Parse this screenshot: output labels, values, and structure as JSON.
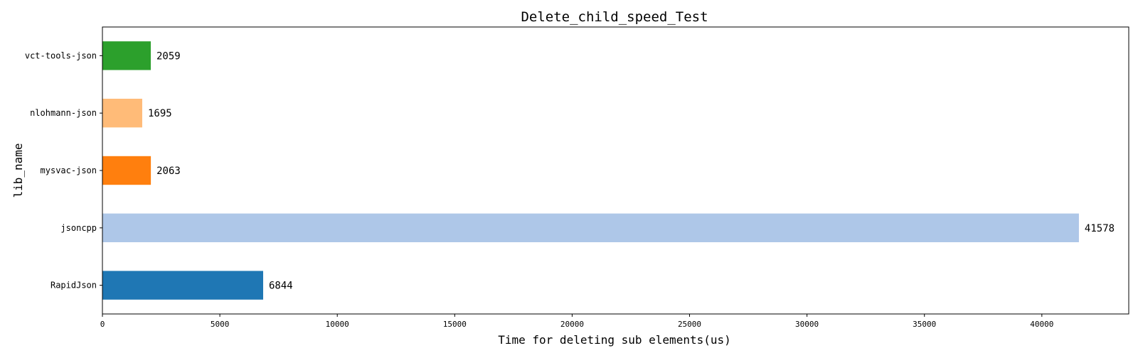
{
  "chart_data": {
    "type": "bar",
    "orientation": "horizontal",
    "title": "Delete_child_speed_Test",
    "xlabel": "Time for deleting sub elements(us)",
    "ylabel": "lib_name",
    "categories": [
      "RapidJson",
      "jsoncpp",
      "mysvac-json",
      "nlohmann-json",
      "vct-tools-json"
    ],
    "values": [
      6844,
      41578,
      2063,
      1695,
      2059
    ],
    "value_labels": [
      "6844",
      "41578",
      "2063",
      "1695",
      "2059"
    ],
    "colors": [
      "#1f77b4",
      "#aec7e8",
      "#ff7f0e",
      "#ffbb78",
      "#2ca02c"
    ],
    "xlim": [
      0,
      43700
    ],
    "xticks": [
      0,
      5000,
      10000,
      15000,
      20000,
      25000,
      30000,
      35000,
      40000
    ],
    "xtick_labels": [
      "0",
      "5000",
      "10000",
      "15000",
      "20000",
      "25000",
      "30000",
      "35000",
      "40000"
    ],
    "grid": false,
    "legend": "none"
  }
}
